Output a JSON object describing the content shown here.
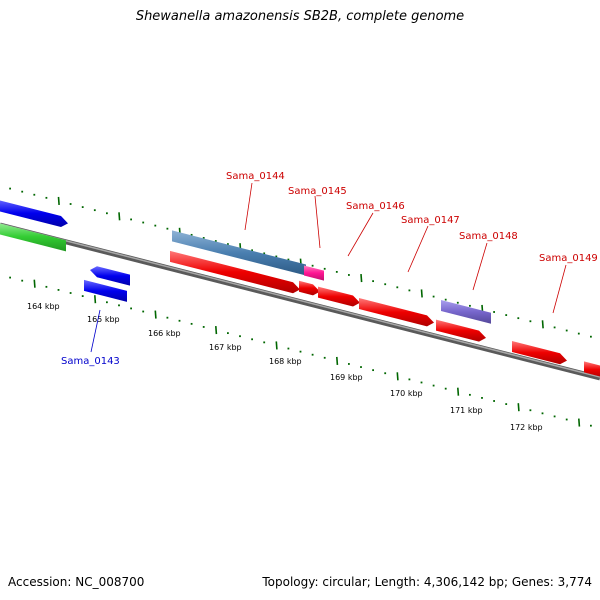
{
  "title": "Shewanella amazonensis SB2B, complete genome",
  "accession_label": "Accession: NC_008700",
  "topology_label": "Topology: circular; Length: 4,306,142 bp; Genes: 3,774",
  "gene_labels": [
    {
      "name": "Sama_0143",
      "color": "#0000cc"
    },
    {
      "name": "Sama_0144",
      "color": "#cc0000"
    },
    {
      "name": "Sama_0145",
      "color": "#cc0000"
    },
    {
      "name": "Sama_0146",
      "color": "#cc0000"
    },
    {
      "name": "Sama_0147",
      "color": "#cc0000"
    },
    {
      "name": "Sama_0148",
      "color": "#cc0000"
    },
    {
      "name": "Sama_0149",
      "color": "#cc0000"
    }
  ],
  "ticks": [
    "164 kbp",
    "165 kbp",
    "166 kbp",
    "167 kbp",
    "168 kbp",
    "169 kbp",
    "170 kbp",
    "171 kbp",
    "172 kbp"
  ],
  "colors": {
    "backbone": "#777777",
    "forward_cds": "#0000ee",
    "reverse_cds": "#ee0000",
    "rna": "#33cc33",
    "feature_steelblue": "#4a7fb0",
    "feature_pink": "#ff1493",
    "feature_purple": "#7766cc",
    "tick_green": "#006600"
  }
}
